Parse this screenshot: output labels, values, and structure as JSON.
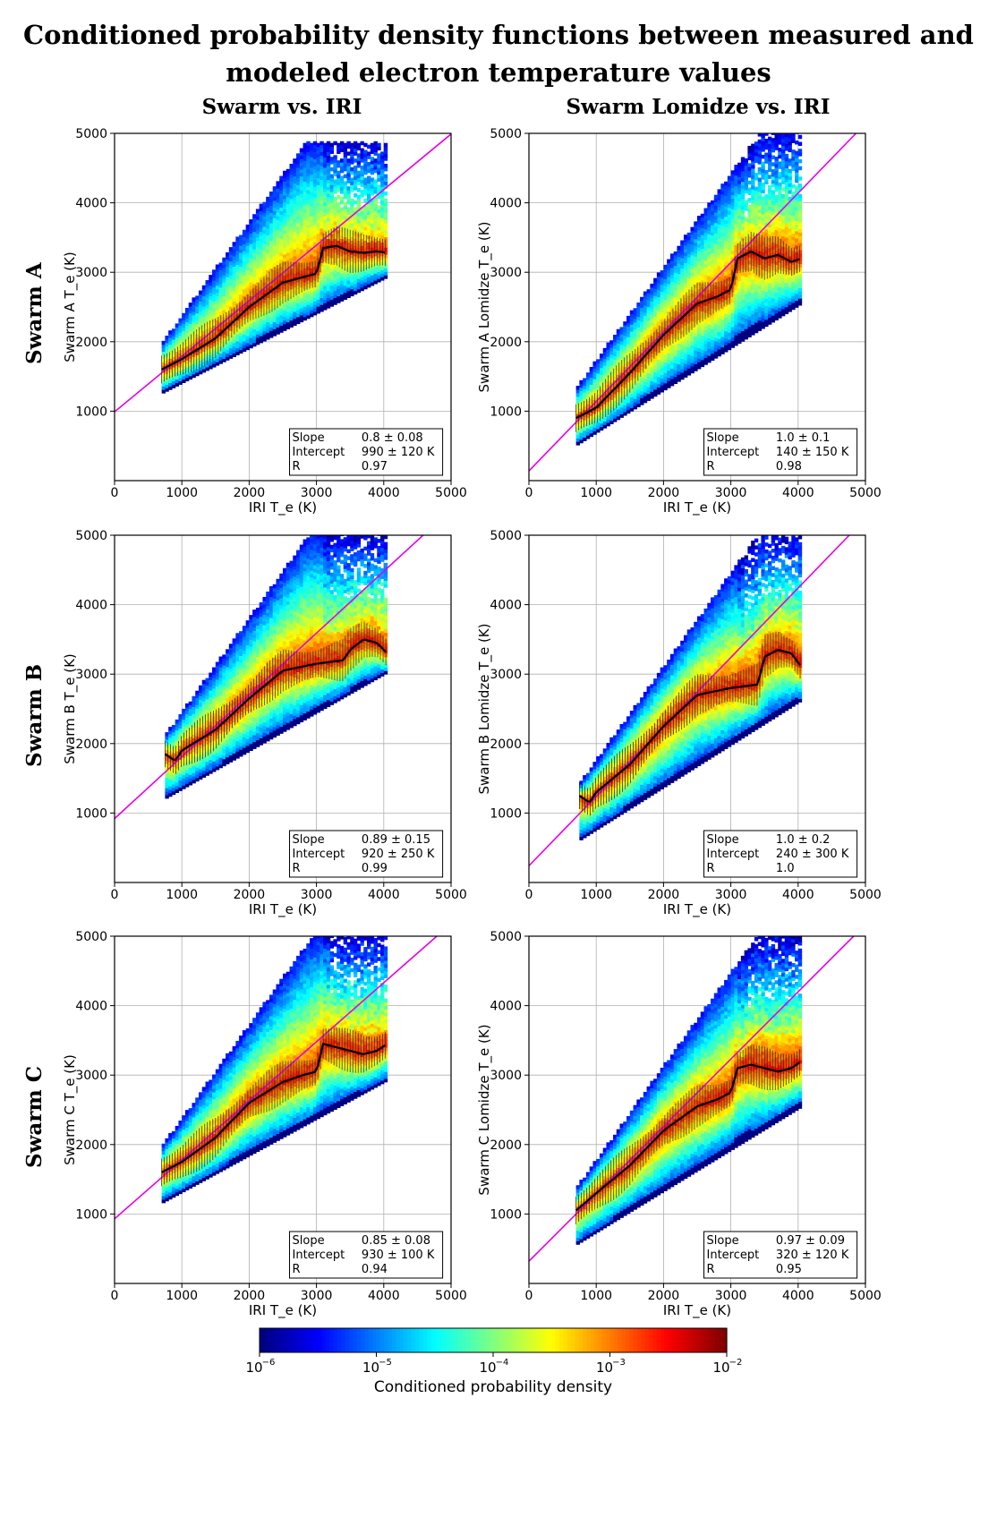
{
  "figure": {
    "title_line1": "Conditioned probability density functions between measured and",
    "title_line2": "modeled electron temperature values",
    "col_titles": [
      "Swarm vs. IRI",
      "Swarm Lomidze vs. IRI"
    ],
    "row_titles": [
      "Swarm A",
      "Swarm B",
      "Swarm C"
    ]
  },
  "chart_data": [
    {
      "type": "heatmap",
      "panel": "A-IRI",
      "xlabel": "IRI T_e (K)",
      "ylabel": "Swarm A T_e (K)",
      "xlim": [
        0,
        5000
      ],
      "ylim": [
        0,
        5000
      ],
      "grid": true,
      "stats": {
        "slope_label": "Slope",
        "slope": "0.8 ± 0.08",
        "intercept_label": "Intercept",
        "intercept": "990 ± 120 K",
        "r_label": "R",
        "r": "0.97"
      },
      "fit": {
        "slope": 0.8,
        "intercept": 990
      },
      "median_line": {
        "x": [
          700,
          1000,
          1500,
          2000,
          2500,
          2800,
          3000,
          3100,
          3300,
          3500,
          3700,
          3900,
          4050
        ],
        "y": [
          1600,
          1750,
          2050,
          2500,
          2850,
          2930,
          2980,
          3350,
          3380,
          3300,
          3280,
          3300,
          3280
        ]
      },
      "envelope": {
        "x_min": 700,
        "x_max": 4050,
        "lower_at_xmin": 1250,
        "upper_at_xmin": 1950,
        "upper_max": 4850
      }
    },
    {
      "type": "heatmap",
      "panel": "A-Lomidze",
      "xlabel": "IRI T_e (K)",
      "ylabel": "Swarm A Lomidze T_e (K)",
      "xlim": [
        0,
        5000
      ],
      "ylim": [
        0,
        5000
      ],
      "grid": true,
      "stats": {
        "slope_label": "Slope",
        "slope": "1.0 ± 0.1",
        "intercept_label": "Intercept",
        "intercept": "140 ± 150 K",
        "r_label": "R",
        "r": "0.98"
      },
      "fit": {
        "slope": 1.0,
        "intercept": 140
      },
      "median_line": {
        "x": [
          700,
          1000,
          1500,
          2000,
          2500,
          2800,
          3000,
          3100,
          3300,
          3500,
          3700,
          3900,
          4050
        ],
        "y": [
          900,
          1050,
          1550,
          2100,
          2550,
          2650,
          2750,
          3200,
          3300,
          3200,
          3250,
          3150,
          3200
        ]
      },
      "envelope": {
        "x_min": 700,
        "x_max": 4050,
        "lower_at_xmin": 500,
        "upper_at_xmin": 1300,
        "upper_max": 5000
      }
    },
    {
      "type": "heatmap",
      "panel": "B-IRI",
      "xlabel": "IRI T_e (K)",
      "ylabel": "Swarm B T_e (K)",
      "xlim": [
        0,
        5000
      ],
      "ylim": [
        0,
        5000
      ],
      "grid": true,
      "stats": {
        "slope_label": "Slope",
        "slope": "0.89 ± 0.15",
        "intercept_label": "Intercept",
        "intercept": "920 ± 250 K",
        "r_label": "R",
        "r": "0.99"
      },
      "fit": {
        "slope": 0.89,
        "intercept": 920
      },
      "median_line": {
        "x": [
          750,
          900,
          1000,
          1500,
          2000,
          2500,
          3000,
          3400,
          3500,
          3700,
          3900,
          4050
        ],
        "y": [
          1850,
          1750,
          1900,
          2200,
          2650,
          3050,
          3150,
          3200,
          3350,
          3500,
          3450,
          3300
        ]
      },
      "envelope": {
        "x_min": 750,
        "x_max": 4050,
        "lower_at_xmin": 1200,
        "upper_at_xmin": 2100,
        "upper_max": 5000
      }
    },
    {
      "type": "heatmap",
      "panel": "B-Lomidze",
      "xlabel": "IRI T_e (K)",
      "ylabel": "Swarm B Lomidze T_e (K)",
      "xlim": [
        0,
        5000
      ],
      "ylim": [
        0,
        5000
      ],
      "grid": true,
      "stats": {
        "slope_label": "Slope",
        "slope": "1.0 ± 0.2",
        "intercept_label": "Intercept",
        "intercept": "240 ± 300 K",
        "r_label": "R",
        "r": "1.0"
      },
      "fit": {
        "slope": 1.0,
        "intercept": 240
      },
      "median_line": {
        "x": [
          750,
          900,
          1000,
          1500,
          2000,
          2500,
          3000,
          3400,
          3500,
          3700,
          3900,
          4050
        ],
        "y": [
          1250,
          1150,
          1300,
          1700,
          2250,
          2700,
          2800,
          2850,
          3250,
          3350,
          3300,
          3100
        ]
      },
      "envelope": {
        "x_min": 750,
        "x_max": 4050,
        "lower_at_xmin": 600,
        "upper_at_xmin": 1400,
        "upper_max": 5000
      }
    },
    {
      "type": "heatmap",
      "panel": "C-IRI",
      "xlabel": "IRI T_e (K)",
      "ylabel": "Swarm C T_e (K)",
      "xlim": [
        0,
        5000
      ],
      "ylim": [
        0,
        5000
      ],
      "grid": true,
      "stats": {
        "slope_label": "Slope",
        "slope": "0.85 ± 0.08",
        "intercept_label": "Intercept",
        "intercept": "930 ± 100 K",
        "r_label": "R",
        "r": "0.94"
      },
      "fit": {
        "slope": 0.85,
        "intercept": 930
      },
      "median_line": {
        "x": [
          700,
          1000,
          1500,
          2000,
          2500,
          2800,
          3000,
          3100,
          3300,
          3500,
          3700,
          3900,
          4050
        ],
        "y": [
          1600,
          1750,
          2100,
          2600,
          2900,
          3000,
          3050,
          3450,
          3400,
          3350,
          3300,
          3350,
          3450
        ]
      },
      "envelope": {
        "x_min": 700,
        "x_max": 4050,
        "lower_at_xmin": 1150,
        "upper_at_xmin": 1950,
        "upper_max": 5000
      }
    },
    {
      "type": "heatmap",
      "panel": "C-Lomidze",
      "xlabel": "IRI T_e (K)",
      "ylabel": "Swarm C Lomidze T_e (K)",
      "xlim": [
        0,
        5000
      ],
      "ylim": [
        0,
        5000
      ],
      "grid": true,
      "stats": {
        "slope_label": "Slope",
        "slope": "0.97 ± 0.09",
        "intercept_label": "Intercept",
        "intercept": "320 ± 120 K",
        "r_label": "R",
        "r": "0.95"
      },
      "fit": {
        "slope": 0.97,
        "intercept": 320
      },
      "median_line": {
        "x": [
          700,
          1000,
          1500,
          2000,
          2500,
          2800,
          3000,
          3100,
          3300,
          3500,
          3700,
          3900,
          4050
        ],
        "y": [
          1050,
          1300,
          1700,
          2200,
          2550,
          2650,
          2750,
          3100,
          3150,
          3100,
          3050,
          3100,
          3200
        ]
      },
      "envelope": {
        "x_min": 700,
        "x_max": 4050,
        "lower_at_xmin": 550,
        "upper_at_xmin": 1350,
        "upper_max": 5000
      }
    }
  ],
  "axis": {
    "x_ticks": [
      "0",
      "1000",
      "2000",
      "3000",
      "4000",
      "5000"
    ],
    "y_ticks": [
      "0",
      "1000",
      "2000",
      "3000",
      "4000",
      "5000"
    ]
  },
  "colorbar": {
    "label": "Conditioned probability density",
    "tick_labels": [
      "10",
      "10",
      "10",
      "10",
      "10"
    ],
    "tick_exponents": [
      "−6",
      "−5",
      "−4",
      "−3",
      "−2"
    ],
    "colormap": "jet",
    "range": [
      -6,
      -2
    ],
    "scale": "log"
  },
  "colors": {
    "fit_line": "#e600e6",
    "median": "#000000",
    "grid": "#b0b0b0"
  }
}
